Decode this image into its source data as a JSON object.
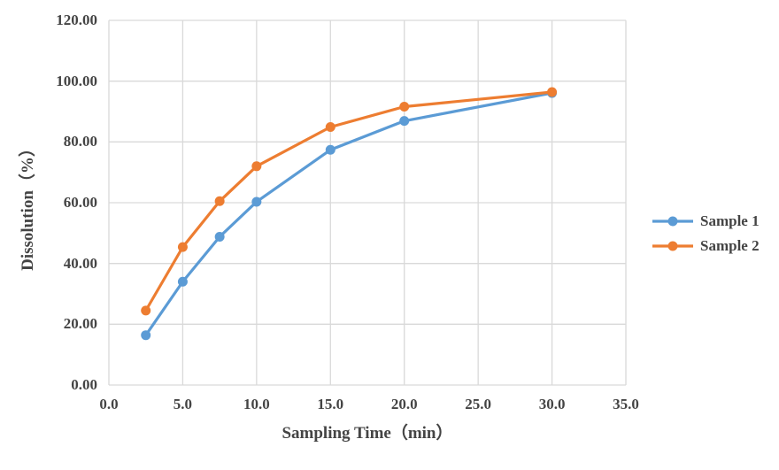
{
  "chart_data": {
    "type": "line",
    "title": "",
    "xlabel": "Sampling Time（min）",
    "ylabel": "Dissolution（%）",
    "x": [
      2.5,
      5.0,
      7.5,
      10.0,
      15.0,
      20.0,
      30.0
    ],
    "series": [
      {
        "name": "Sample 1",
        "color": "#5B9BD5",
        "values": [
          16.4,
          34.0,
          48.8,
          60.3,
          77.4,
          86.9,
          96.1
        ]
      },
      {
        "name": "Sample 2",
        "color": "#ED7D31",
        "values": [
          24.5,
          45.4,
          60.5,
          72.0,
          84.9,
          91.6,
          96.4
        ]
      }
    ],
    "xlim": [
      0,
      35
    ],
    "ylim": [
      0,
      120
    ],
    "x_ticks": [
      "0.0",
      "5.0",
      "10.0",
      "15.0",
      "20.0",
      "25.0",
      "30.0",
      "35.0"
    ],
    "y_ticks": [
      "0.00",
      "20.00",
      "40.00",
      "60.00",
      "80.00",
      "100.00",
      "120.00"
    ],
    "grid": true,
    "legend_position": "right",
    "gridline_color": "#D9D9D9",
    "text_color": "#444444",
    "marker": "circle"
  }
}
